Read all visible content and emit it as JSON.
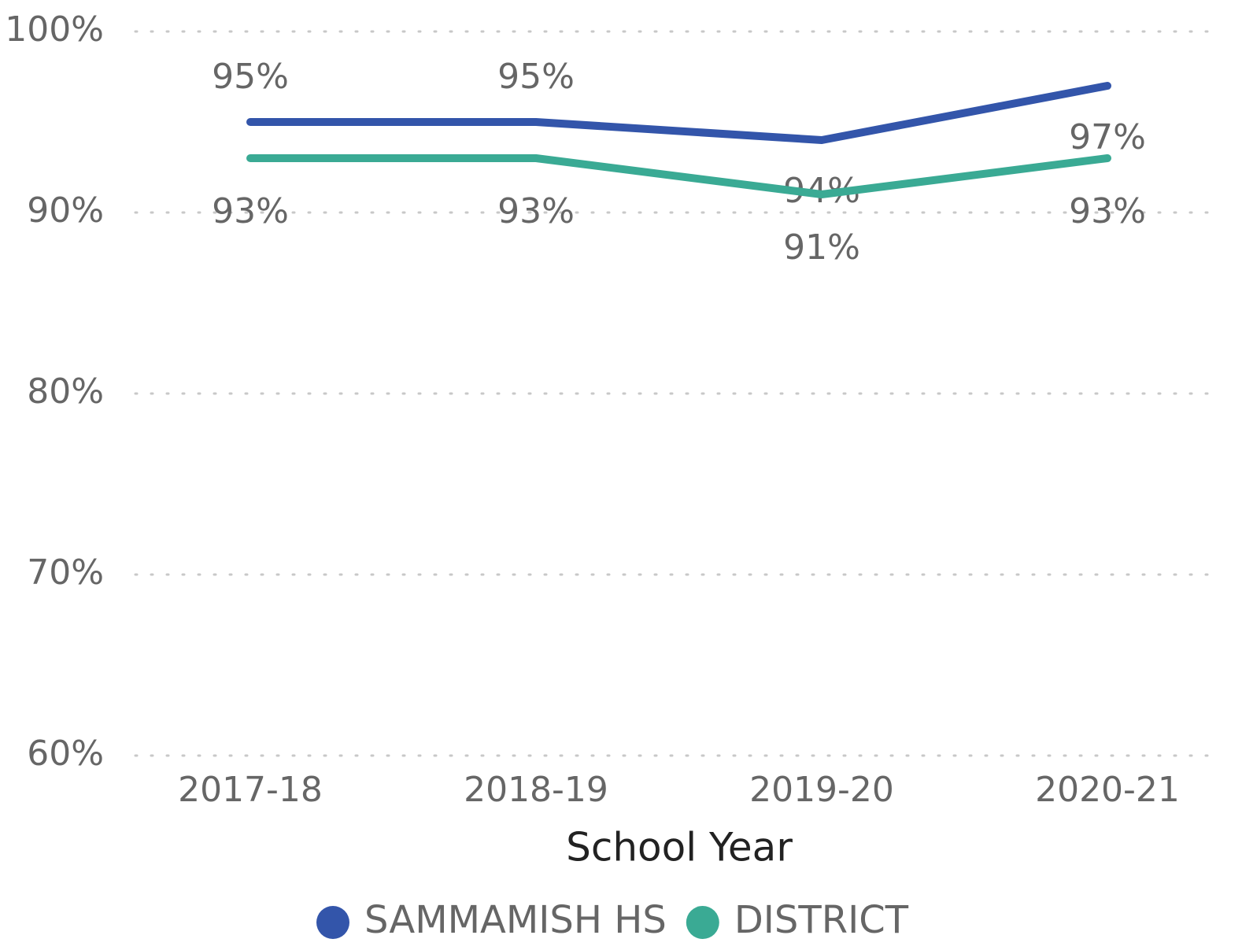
{
  "chart_data": {
    "type": "line",
    "x_label": "School Year",
    "categories": [
      "2017-18",
      "2018-19",
      "2019-20",
      "2020-21"
    ],
    "series": [
      {
        "name": "SAMMAMISH HS",
        "color": "#3355aa",
        "values": [
          95,
          95,
          94,
          97
        ],
        "value_labels": [
          "95%",
          "95%",
          "94%",
          "97%"
        ]
      },
      {
        "name": "DISTRICT",
        "color": "#3aaa94",
        "values": [
          93,
          93,
          91,
          93
        ],
        "value_labels": [
          "93%",
          "93%",
          "91%",
          "93%"
        ]
      }
    ],
    "ylim": [
      60,
      100
    ],
    "yticks": [
      {
        "value": 60,
        "label": "60%"
      },
      {
        "value": 70,
        "label": "70%"
      },
      {
        "value": 80,
        "label": "80%"
      },
      {
        "value": 90,
        "label": "90%"
      },
      {
        "value": 100,
        "label": "100%"
      }
    ],
    "grid": true,
    "legend": "bottom"
  }
}
